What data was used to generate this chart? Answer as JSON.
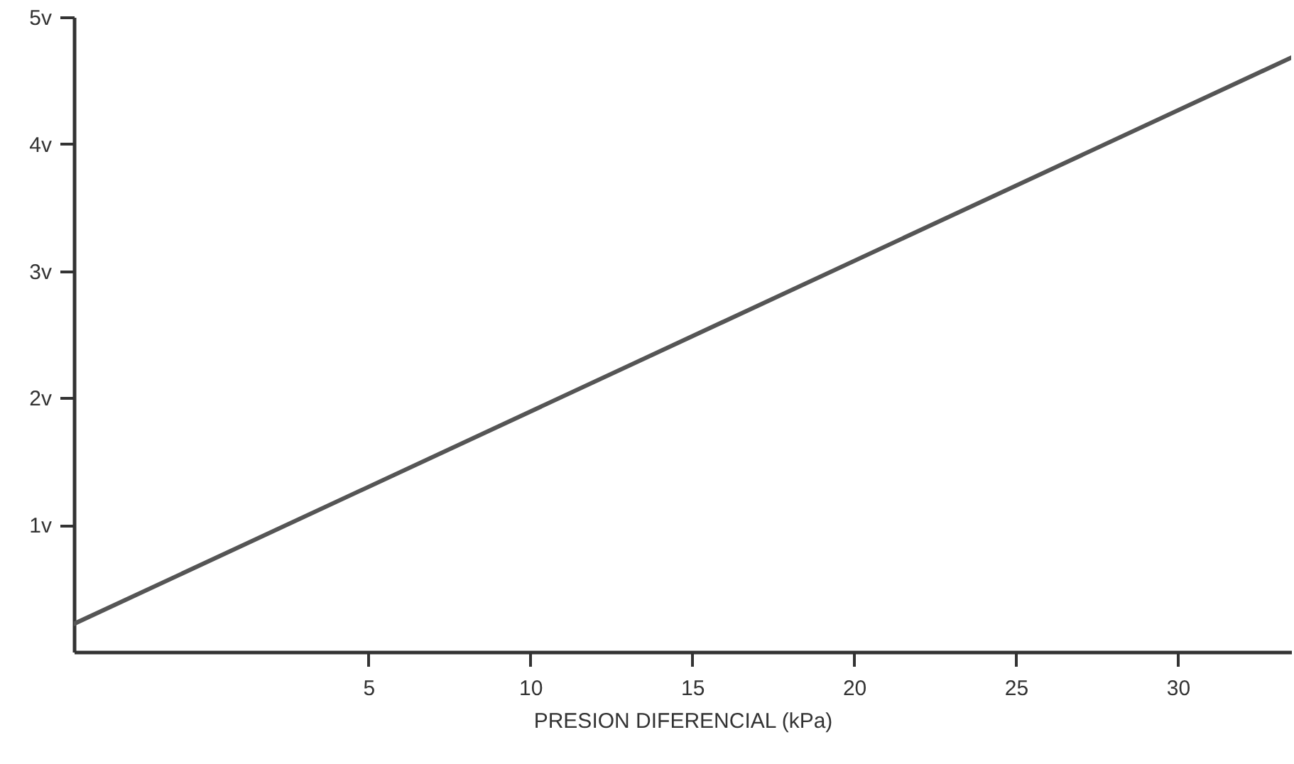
{
  "chart_data": {
    "type": "line",
    "xlabel": "PRESION DIFERENCIAL (kPa)",
    "x": [
      -4.1,
      33.5
    ],
    "series": [
      {
        "color": "#555555",
        "values": [
          0.22,
          4.68
        ]
      }
    ],
    "xlim": [
      -4.1,
      33.5
    ],
    "xticks": [
      5,
      10,
      15,
      20,
      25,
      30
    ],
    "ylim": [
      0,
      5
    ],
    "yticks": [
      {
        "value": 1,
        "label": "1v"
      },
      {
        "value": 2,
        "label": "2v"
      },
      {
        "value": 3,
        "label": "3v"
      },
      {
        "value": 4,
        "label": "4v"
      },
      {
        "value": 5,
        "label": "5v"
      }
    ],
    "grid": false,
    "marker": "none",
    "line_style": "solid"
  }
}
